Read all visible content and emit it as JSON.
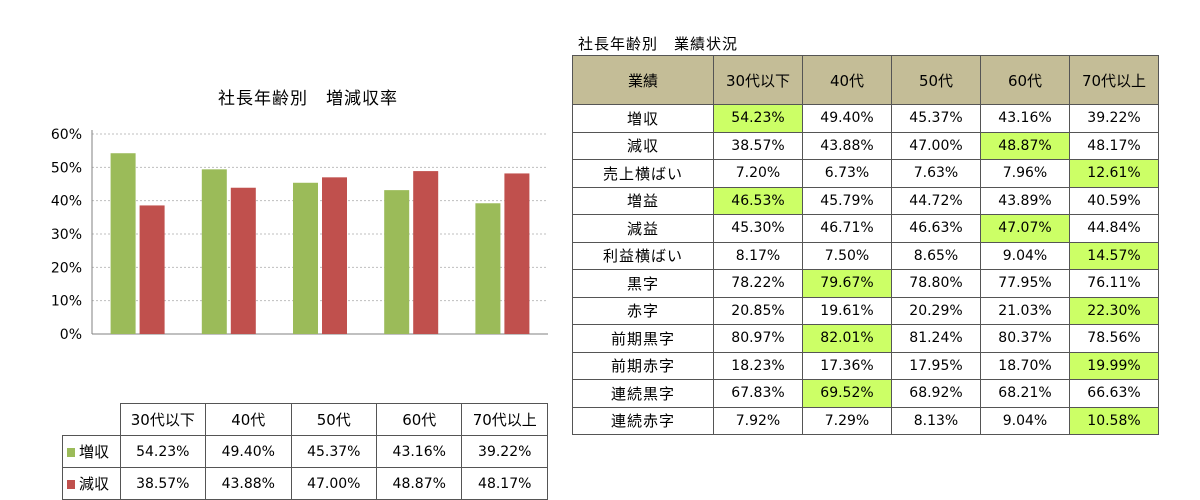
{
  "left_chart": {
    "title": "社長年齢別　増減収率"
  },
  "right_table": {
    "title": "社長年齢別　業績状況",
    "header": [
      "業績",
      "30代以下",
      "40代",
      "50代",
      "60代",
      "70代以上"
    ],
    "highlight_color": "#ccff66",
    "header_color": "#c4bd97",
    "rows": [
      {
        "label": "増収",
        "values": [
          "54.23%",
          "49.40%",
          "45.37%",
          "43.16%",
          "39.22%"
        ],
        "highlight": 0
      },
      {
        "label": "減収",
        "values": [
          "38.57%",
          "43.88%",
          "47.00%",
          "48.87%",
          "48.17%"
        ],
        "highlight": 3
      },
      {
        "label": "売上横ばい",
        "values": [
          "7.20%",
          "6.73%",
          "7.63%",
          "7.96%",
          "12.61%"
        ],
        "highlight": 4
      },
      {
        "label": "増益",
        "values": [
          "46.53%",
          "45.79%",
          "44.72%",
          "43.89%",
          "40.59%"
        ],
        "highlight": 0
      },
      {
        "label": "減益",
        "values": [
          "45.30%",
          "46.71%",
          "46.63%",
          "47.07%",
          "44.84%"
        ],
        "highlight": 3
      },
      {
        "label": "利益横ばい",
        "values": [
          "8.17%",
          "7.50%",
          "8.65%",
          "9.04%",
          "14.57%"
        ],
        "highlight": 4
      },
      {
        "label": "黒字",
        "values": [
          "78.22%",
          "79.67%",
          "78.80%",
          "77.95%",
          "76.11%"
        ],
        "highlight": 1
      },
      {
        "label": "赤字",
        "values": [
          "20.85%",
          "19.61%",
          "20.29%",
          "21.03%",
          "22.30%"
        ],
        "highlight": 4
      },
      {
        "label": "前期黒字",
        "values": [
          "80.97%",
          "82.01%",
          "81.24%",
          "80.37%",
          "78.56%"
        ],
        "highlight": 1
      },
      {
        "label": "前期赤字",
        "values": [
          "18.23%",
          "17.36%",
          "17.95%",
          "18.70%",
          "19.99%"
        ],
        "highlight": 4
      },
      {
        "label": "連続黒字",
        "values": [
          "67.83%",
          "69.52%",
          "68.92%",
          "68.21%",
          "66.63%"
        ],
        "highlight": 1
      },
      {
        "label": "連続赤字",
        "values": [
          "7.92%",
          "7.29%",
          "8.13%",
          "9.04%",
          "10.58%"
        ],
        "highlight": 4
      }
    ]
  },
  "chart_data": {
    "type": "bar",
    "title": "社長年齢別　増減収率",
    "categories": [
      "30代以下",
      "40代",
      "50代",
      "60代",
      "70代以上"
    ],
    "series": [
      {
        "name": "増収",
        "color": "#9bbb59",
        "values": [
          54.23,
          49.4,
          45.37,
          43.16,
          39.22
        ],
        "labels": [
          "54.23%",
          "49.40%",
          "45.37%",
          "43.16%",
          "39.22%"
        ]
      },
      {
        "name": "減収",
        "color": "#c0504d",
        "values": [
          38.57,
          43.88,
          47.0,
          48.87,
          48.17
        ],
        "labels": [
          "38.57%",
          "43.88%",
          "47.00%",
          "48.87%",
          "48.17%"
        ]
      }
    ],
    "yticks": [
      "0%",
      "10%",
      "20%",
      "30%",
      "40%",
      "50%",
      "60%"
    ],
    "ylim": [
      0,
      60
    ],
    "grid": true,
    "legend": "data-table"
  }
}
